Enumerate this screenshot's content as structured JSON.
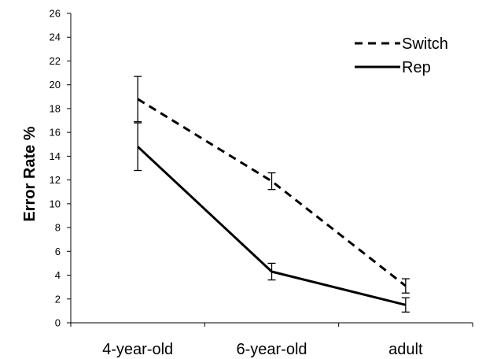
{
  "chart_data": {
    "type": "line",
    "title": "",
    "xlabel": "",
    "ylabel": "Error Rate %",
    "categories": [
      "4-year-old",
      "6-year-old",
      "adult"
    ],
    "ylim": [
      0,
      26
    ],
    "yticks": [
      0,
      2,
      4,
      6,
      8,
      10,
      12,
      14,
      16,
      18,
      20,
      22,
      24,
      26
    ],
    "grid": false,
    "legend_position": "top-right",
    "series": [
      {
        "name": "Switch",
        "style": "dashed",
        "color": "#000000",
        "values": [
          18.8,
          11.9,
          3.1
        ],
        "error": [
          1.9,
          0.7,
          0.6
        ]
      },
      {
        "name": "Rep",
        "style": "solid",
        "color": "#000000",
        "values": [
          14.8,
          4.3,
          1.5
        ],
        "error": [
          2.0,
          0.7,
          0.6
        ]
      }
    ]
  }
}
